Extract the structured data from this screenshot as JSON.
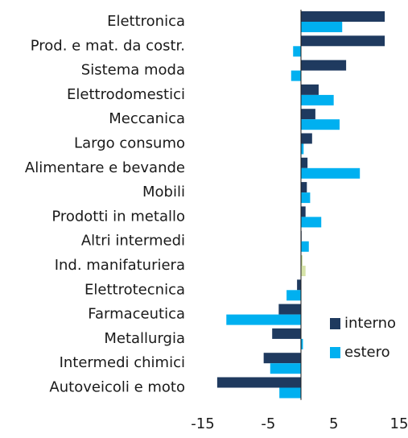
{
  "chart_data": {
    "type": "hbar",
    "categories": [
      "Elettronica",
      "Prod. e mat. da costr.",
      "Sistema moda",
      "Elettrodomestici",
      "Meccanica",
      "Largo consumo",
      "Alimentare e bevande",
      "Mobili",
      "Prodotti in metallo",
      "Altri intermedi",
      "Ind. manifaturiera",
      "Elettrotecnica",
      "Farmaceutica",
      "Metallurgia",
      "Intermedi chimici",
      "Autoveicoli e moto"
    ],
    "series": [
      {
        "name": "interno",
        "color": "#1f3a5f",
        "highlight": {
          "index": 10,
          "color": "#b5cc7a"
        },
        "values": [
          12.8,
          12.8,
          6.9,
          2.7,
          2.2,
          1.7,
          1.0,
          0.9,
          0.7,
          0.1,
          0.2,
          -0.6,
          -3.4,
          -4.4,
          -5.7,
          -12.8
        ]
      },
      {
        "name": "estero",
        "color": "#00b0f0",
        "highlight": {
          "index": 10,
          "color": "#d6e3a8"
        },
        "values": [
          6.3,
          -1.2,
          -1.5,
          5.0,
          5.9,
          0.4,
          9.0,
          1.4,
          3.1,
          1.2,
          0.7,
          -2.2,
          -11.4,
          0.3,
          -4.7,
          -3.3
        ]
      }
    ],
    "xlim": [
      -15,
      15
    ],
    "xticks": [
      -15,
      -5,
      5,
      15
    ],
    "legend": "lower-right"
  }
}
